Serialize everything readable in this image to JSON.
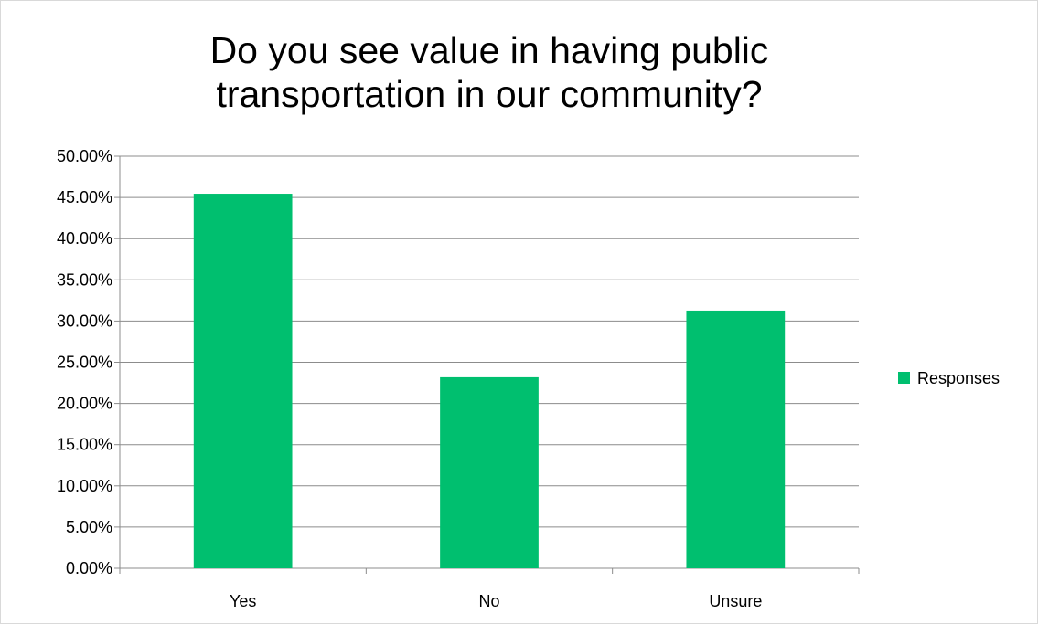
{
  "chart_data": {
    "type": "bar",
    "title": "Do you see value in having public transportation in our community?",
    "categories": [
      "Yes",
      "No",
      "Unsure"
    ],
    "series": [
      {
        "name": "Responses",
        "values": [
          0.4545,
          0.2318,
          0.3127
        ]
      }
    ],
    "ylim": [
      0,
      0.5
    ],
    "y_tick_step": 0.05,
    "y_tick_format": "percent-2dp",
    "grid": true,
    "legend": "right",
    "colors": {
      "bar": "#00BF6F",
      "grid": "#8c8c8c",
      "axis": "#8c8c8c"
    }
  }
}
